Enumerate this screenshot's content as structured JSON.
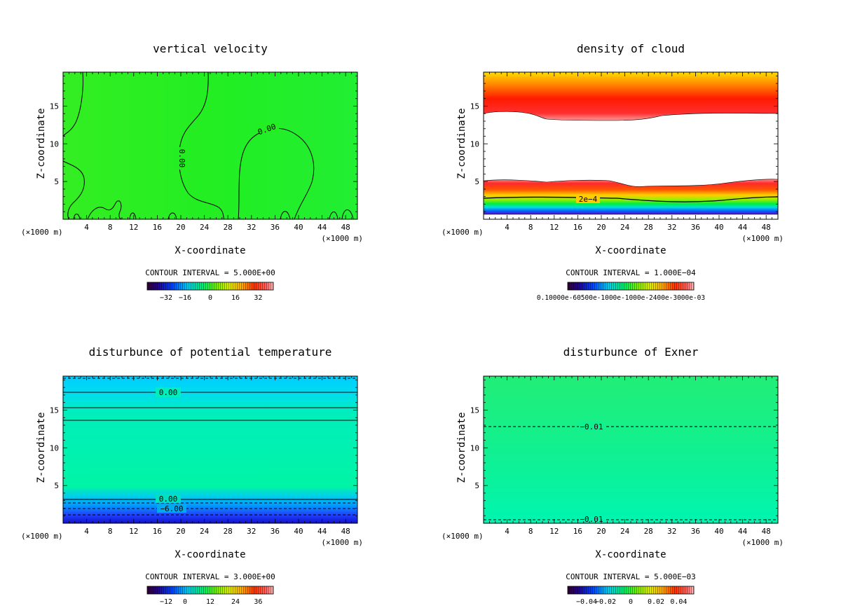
{
  "chart_data": [
    {
      "type": "heatmap",
      "title": "vertical velocity",
      "xlabel": "X-coordinate",
      "ylabel": "Z-coordinate",
      "x_unit_left": "(×1000 m)",
      "x_unit_right": "(×1000 m)",
      "xlim": [
        0,
        50
      ],
      "ylim": [
        0,
        19.5
      ],
      "xticks": [
        "4",
        "8",
        "12",
        "16",
        "20",
        "24",
        "28",
        "32",
        "36",
        "40",
        "44",
        "48"
      ],
      "yticks": [
        "5",
        "10",
        "15"
      ],
      "contour_labels": [
        "0.00",
        "0.00"
      ],
      "contour_interval": "CONTOUR INTERVAL = 5.000E+00",
      "colorbar_labels": [
        "−32",
        "−16",
        "0",
        "16",
        "32"
      ],
      "field_color": "#22ee22"
    },
    {
      "type": "heatmap",
      "title": "density of cloud",
      "xlabel": "X-coordinate",
      "ylabel": "Z-coordinate",
      "x_unit_left": "(×1000 m)",
      "x_unit_right": "(×1000 m)",
      "xlim": [
        0,
        50
      ],
      "ylim": [
        0,
        19.5
      ],
      "xticks": [
        "4",
        "8",
        "12",
        "16",
        "20",
        "24",
        "28",
        "32",
        "36",
        "40",
        "44",
        "48"
      ],
      "yticks": [
        "5",
        "10",
        "15"
      ],
      "contour_labels": [
        "2e−4"
      ],
      "contour_interval": "CONTOUR INTERVAL = 1.000E−04",
      "colorbar_labels": [
        "0.10000e-60500e-1000e-1000e-2400e-3000e-03"
      ],
      "field_color": "#ff2200"
    },
    {
      "type": "heatmap",
      "title": "disturbunce of potential temperature",
      "xlabel": "X-coordinate",
      "ylabel": "Z-coordinate",
      "x_unit_left": "(×1000 m)",
      "x_unit_right": "(×1000 m)",
      "xlim": [
        0,
        50
      ],
      "ylim": [
        0,
        19.5
      ],
      "xticks": [
        "4",
        "8",
        "12",
        "16",
        "20",
        "24",
        "28",
        "32",
        "36",
        "40",
        "44",
        "48"
      ],
      "yticks": [
        "5",
        "10",
        "15"
      ],
      "contour_labels": [
        "0.00",
        "0.00",
        "−6.00"
      ],
      "contour_interval": "CONTOUR INTERVAL = 3.000E+00",
      "colorbar_labels": [
        "−12",
        "0",
        "12",
        "24",
        "36"
      ],
      "field_color": "#00f0a0"
    },
    {
      "type": "heatmap",
      "title": "disturbunce of Exner",
      "xlabel": "X-coordinate",
      "ylabel": "Z-coordinate",
      "x_unit_left": "(×1000 m)",
      "x_unit_right": "(×1000 m)",
      "xlim": [
        0,
        50
      ],
      "ylim": [
        0,
        19.5
      ],
      "xticks": [
        "4",
        "8",
        "12",
        "16",
        "20",
        "24",
        "28",
        "32",
        "36",
        "40",
        "44",
        "48"
      ],
      "yticks": [
        "5",
        "10",
        "15"
      ],
      "contour_labels": [
        "−0.01",
        "−0.01"
      ],
      "contour_interval": "CONTOUR INTERVAL = 5.000E−03",
      "colorbar_labels": [
        "−0.04",
        "−0.02",
        "0",
        "0.02",
        "0.04"
      ],
      "field_color": "#00ee88"
    }
  ]
}
